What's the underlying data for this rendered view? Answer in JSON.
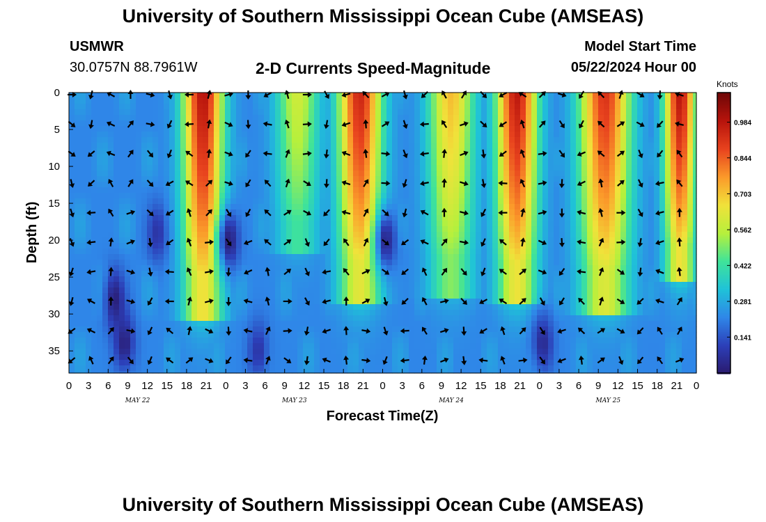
{
  "header": {
    "title": "University of Southern Mississippi Ocean Cube (AMSEAS)",
    "station": "USMWR",
    "coords": "30.0757N  88.7961W",
    "plot_title": "2-D Currents Speed-Magnitude",
    "model_start_label": "Model Start Time",
    "model_start_value": "05/22/2024 Hour 00"
  },
  "footer": {
    "title": "University of Southern Mississippi Ocean Cube (AMSEAS)"
  },
  "chart_data": {
    "type": "heatmap",
    "title": "2-D Currents Speed-Magnitude",
    "xlabel": "Forecast Time(Z)",
    "ylabel": "Depth (ft)",
    "x_hours": [
      0,
      96
    ],
    "ylim": [
      38,
      0
    ],
    "y_ticks": [
      0,
      5,
      10,
      15,
      20,
      25,
      30,
      35
    ],
    "x_ticks": [
      "0",
      "3",
      "6",
      "9",
      "12",
      "15",
      "18",
      "21",
      "0",
      "3",
      "6",
      "9",
      "12",
      "15",
      "18",
      "21",
      "0",
      "3",
      "6",
      "9",
      "12",
      "15",
      "18",
      "21",
      "0",
      "3",
      "6",
      "9",
      "12",
      "15",
      "18",
      "21",
      "0"
    ],
    "day_labels": [
      "MAY 22",
      "MAY 23",
      "MAY 24",
      "MAY 25"
    ],
    "colorbar": {
      "label": "Knots",
      "ticks": [
        "0.984",
        "0.844",
        "0.703",
        "0.562",
        "0.422",
        "0.281",
        "0.141"
      ],
      "tick_values": [
        0.984,
        0.844,
        0.703,
        0.562,
        0.422,
        0.281,
        0.141
      ],
      "range": [
        0.0,
        1.1
      ],
      "colors": [
        "#2a1a6e",
        "#2c3fb8",
        "#2f86e8",
        "#1fc2d8",
        "#3fe39a",
        "#b6f03c",
        "#f0e23a",
        "#fb9a2a",
        "#e8431e",
        "#b8140c",
        "#6f0707"
      ]
    },
    "high_speed_bands": [
      {
        "center_hour": 20.5,
        "half_width_hours": 3.3,
        "peak_knots": 1.0,
        "bottom_depth_ft": 31
      },
      {
        "center_hour": 35,
        "half_width_hours": 3.6,
        "peak_knots": 0.6,
        "bottom_depth_ft": 22
      },
      {
        "center_hour": 44.5,
        "half_width_hours": 3.6,
        "peak_knots": 0.95,
        "bottom_depth_ft": 29
      },
      {
        "center_hour": 58.5,
        "half_width_hours": 3.8,
        "peak_knots": 0.72,
        "bottom_depth_ft": 28
      },
      {
        "center_hour": 68.5,
        "half_width_hours": 3.4,
        "peak_knots": 0.98,
        "bottom_depth_ft": 29
      },
      {
        "center_hour": 82,
        "half_width_hours": 4.2,
        "peak_knots": 0.92,
        "bottom_depth_ft": 30
      },
      {
        "center_hour": 93.5,
        "half_width_hours": 2.6,
        "peak_knots": 0.99,
        "bottom_depth_ft": 26
      }
    ],
    "low_speed_spots": [
      {
        "hour": 7,
        "depth_ft": 28,
        "knots": 0.02
      },
      {
        "hour": 8.5,
        "depth_ft": 34,
        "knots": 0.02
      },
      {
        "hour": 13.5,
        "depth_ft": 19,
        "knots": 0.08
      },
      {
        "hour": 24.5,
        "depth_ft": 20,
        "knots": 0.02
      },
      {
        "hour": 29,
        "depth_ft": 35,
        "knots": 0.08
      },
      {
        "hour": 48.5,
        "depth_ft": 20,
        "knots": 0.04
      },
      {
        "hour": 72.5,
        "depth_ft": 34,
        "knots": 0.05
      }
    ],
    "vectors": {
      "hours": [
        0,
        3,
        6,
        9,
        12,
        15,
        18,
        21,
        24,
        27,
        30,
        33,
        36,
        39,
        42,
        45,
        48,
        51,
        54,
        57,
        60,
        63,
        66,
        69,
        72,
        75,
        78,
        81,
        84,
        87,
        90,
        93
      ],
      "depths_ft": [
        0,
        4,
        8,
        12,
        16,
        20,
        24,
        28,
        32,
        36
      ]
    }
  }
}
